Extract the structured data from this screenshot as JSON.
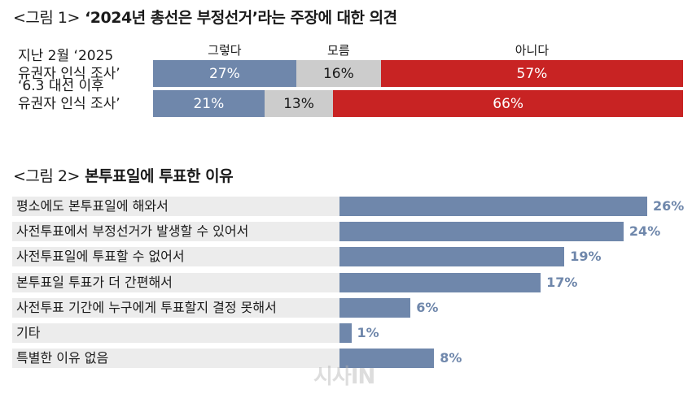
{
  "figures": {
    "fig1": {
      "prefix": "<그림 1>",
      "title": "‘2024년 총선은 부정선거’라는 주장에 대한 의견"
    },
    "fig2": {
      "prefix": "<그림 2>",
      "title": "본투표일에 투표한 이유"
    }
  },
  "colors": {
    "yes": "#6f87ab",
    "unknown": "#cccccc",
    "no": "#c82323",
    "bar": "#6f87ab",
    "label_bg": "#ececec"
  },
  "chart_data": [
    {
      "type": "bar",
      "stacked": true,
      "orientation": "horizontal",
      "title": "‘2024년 총선은 부정선거’라는 주장에 대한 의견",
      "categories": [
        "지난 2월 ‘2025 유권자 인식 조사’",
        "‘6.3 대선 이후 유권자 인식 조사’"
      ],
      "category_lines": [
        [
          "지난 2월 ‘2025",
          "유권자 인식 조사’"
        ],
        [
          "‘6.3 대선 이후",
          "유권자 인식 조사’"
        ]
      ],
      "series": [
        {
          "name": "그렇다",
          "values": [
            27,
            21
          ],
          "labels": [
            "27%",
            "21%"
          ]
        },
        {
          "name": "모름",
          "values": [
            16,
            13
          ],
          "labels": [
            "16%",
            "13%"
          ]
        },
        {
          "name": "아니다",
          "values": [
            57,
            66
          ],
          "labels": [
            "57%",
            "66%"
          ]
        }
      ],
      "unit": "%",
      "xlim": [
        0,
        100
      ],
      "legend": "top"
    },
    {
      "type": "bar",
      "orientation": "horizontal",
      "title": "본투표일에 투표한 이유",
      "categories": [
        "평소에도 본투표일에 해와서",
        "사전투표에서 부정선거가 발생할 수 있어서",
        "사전투표일에 투표할 수 없어서",
        "본투표일 투표가 더 간편해서",
        "사전투표 기간에 누구에게 투표할지 결정 못해서",
        "기타",
        "특별한 이유 없음"
      ],
      "values": [
        26,
        24,
        19,
        17,
        6,
        1,
        8
      ],
      "labels": [
        "26%",
        "24%",
        "19%",
        "17%",
        "6%",
        "1%",
        "8%"
      ],
      "unit": "%",
      "xlim": [
        0,
        26
      ]
    }
  ],
  "watermark": "시사IN"
}
